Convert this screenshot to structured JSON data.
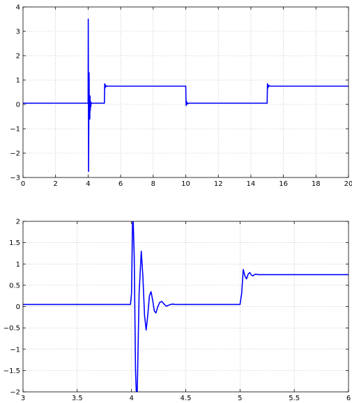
{
  "chart_data": [
    {
      "type": "line",
      "title": "",
      "xlabel": "",
      "ylabel": "",
      "xlim": [
        0,
        20
      ],
      "ylim": [
        -3,
        4
      ],
      "grid": true,
      "xticks": [
        0,
        2,
        4,
        6,
        8,
        10,
        12,
        14,
        16,
        18,
        20
      ],
      "yticks": [
        -3,
        -2,
        -1,
        0,
        1,
        2,
        3,
        4
      ],
      "line_color": "#0000ff",
      "series": [
        {
          "x": [
            0,
            4.0,
            4.01,
            4.02,
            4.03,
            4.045,
            4.06,
            4.075,
            4.09,
            4.105,
            4.12,
            4.135,
            4.15,
            4.165,
            4.18,
            4.195,
            4.21,
            4.225,
            4.24,
            4.26,
            4.3,
            4.4,
            4.6,
            5.0,
            5.02,
            5.04,
            5.06,
            5.08,
            5.1,
            5.14,
            5.2,
            5.3,
            5.6,
            10.0,
            10.02,
            10.04,
            10.06,
            10.08,
            10.12,
            10.2,
            10.4,
            15.0,
            15.02,
            15.04,
            15.06,
            15.08,
            15.12,
            15.2,
            15.4,
            20
          ],
          "y": [
            0.05,
            0.05,
            3.5,
            0.5,
            -2.75,
            -0.6,
            1.3,
            -0.55,
            0.34,
            -0.6,
            0.35,
            -0.25,
            0.12,
            -0.1,
            0.06,
            0.03,
            0.06,
            0.05,
            0.05,
            0.05,
            0.05,
            0.05,
            0.05,
            0.05,
            0.85,
            0.67,
            0.8,
            0.72,
            0.77,
            0.745,
            0.75,
            0.75,
            0.75,
            0.75,
            -0.05,
            0.13,
            0.0,
            0.08,
            0.03,
            0.05,
            0.05,
            0.05,
            0.85,
            0.67,
            0.8,
            0.72,
            0.77,
            0.75,
            0.75,
            0.75
          ]
        }
      ]
    },
    {
      "type": "line",
      "title": "",
      "xlabel": "",
      "ylabel": "",
      "xlim": [
        3,
        6
      ],
      "ylim": [
        -2,
        2
      ],
      "grid": true,
      "xticks": [
        3,
        3.5,
        4,
        4.5,
        5,
        5.5,
        6
      ],
      "yticks": [
        -2,
        -1.5,
        -1,
        -0.5,
        0,
        0.5,
        1,
        1.5,
        2
      ],
      "line_color": "#0000ff",
      "series": [
        {
          "x": [
            3,
            3.99,
            4.0,
            4.012,
            4.025,
            4.037,
            4.05,
            4.07,
            4.09,
            4.105,
            4.12,
            4.135,
            4.15,
            4.165,
            4.18,
            4.195,
            4.21,
            4.225,
            4.24,
            4.26,
            4.28,
            4.3,
            4.32,
            4.34,
            4.36,
            4.38,
            4.4,
            4.45,
            4.5,
            5.0,
            5.015,
            5.03,
            5.045,
            5.06,
            5.075,
            5.09,
            5.105,
            5.12,
            5.14,
            5.17,
            5.2,
            5.3,
            6
          ],
          "y": [
            0.05,
            0.05,
            0.3,
            2.3,
            1.2,
            -1.5,
            -2.4,
            0.3,
            1.3,
            0.7,
            -0.2,
            -0.55,
            -0.2,
            0.25,
            0.35,
            0.15,
            -0.1,
            -0.15,
            -0.02,
            0.1,
            0.12,
            0.06,
            0.01,
            0.03,
            0.05,
            0.06,
            0.05,
            0.05,
            0.05,
            0.05,
            0.3,
            0.87,
            0.72,
            0.65,
            0.76,
            0.8,
            0.74,
            0.72,
            0.76,
            0.75,
            0.75,
            0.75,
            0.75
          ]
        }
      ]
    }
  ]
}
